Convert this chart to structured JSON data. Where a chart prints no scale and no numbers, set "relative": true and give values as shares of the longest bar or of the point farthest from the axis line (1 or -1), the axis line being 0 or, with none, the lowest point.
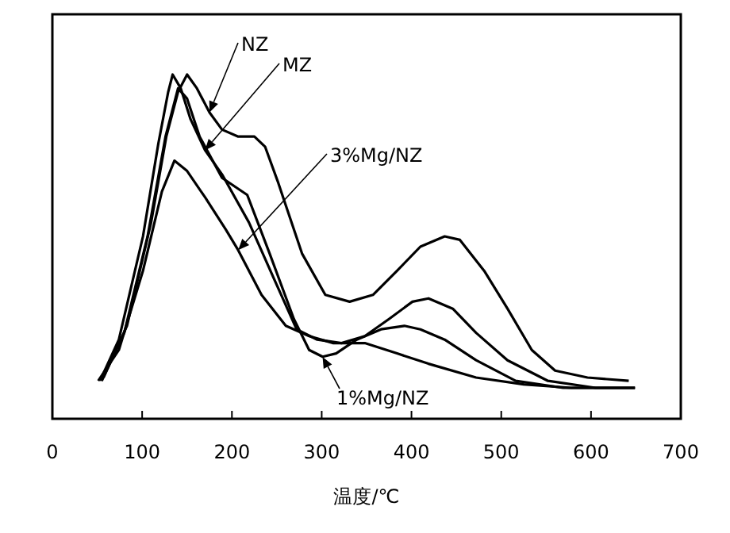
{
  "chart_data": {
    "type": "line",
    "relative": true,
    "xlabel": "温度/℃",
    "xlim": [
      0,
      700
    ],
    "xticks": [
      0,
      100,
      200,
      300,
      400,
      500,
      600,
      700
    ],
    "series": [
      {
        "name": "NZ",
        "color": "#000000",
        "x": [
          57,
          83,
          110,
          127,
          140,
          150,
          161,
          175,
          189,
          207,
          225,
          237,
          251,
          278,
          304,
          331,
          357,
          384,
          410,
          437,
          454,
          481,
          507,
          534,
          560,
          596,
          642
        ],
        "values": [
          0.12,
          0.27,
          0.57,
          0.82,
          0.95,
          1.0,
          0.96,
          0.89,
          0.84,
          0.82,
          0.82,
          0.79,
          0.69,
          0.48,
          0.36,
          0.34,
          0.36,
          0.43,
          0.5,
          0.53,
          0.52,
          0.43,
          0.32,
          0.2,
          0.14,
          0.12,
          0.11
        ]
      },
      {
        "name": "MZ",
        "color": "#000000",
        "x": [
          53,
          74,
          101,
          118,
          129,
          134,
          143,
          154,
          170,
          189,
          219,
          248,
          272,
          295,
          322,
          348,
          375,
          401,
          419,
          446,
          472,
          507,
          552,
          605,
          649
        ],
        "values": [
          0.11,
          0.23,
          0.53,
          0.8,
          0.95,
          1.0,
          0.96,
          0.87,
          0.78,
          0.71,
          0.57,
          0.4,
          0.26,
          0.23,
          0.22,
          0.24,
          0.29,
          0.34,
          0.35,
          0.32,
          0.25,
          0.17,
          0.11,
          0.09,
          0.09
        ]
      },
      {
        "name": "1%Mg/NZ",
        "color": "#000000",
        "x": [
          55,
          80,
          106,
          126,
          140,
          150,
          164,
          189,
          217,
          242,
          269,
          286,
          301,
          316,
          339,
          366,
          392,
          410,
          437,
          472,
          516,
          569,
          649
        ],
        "values": [
          0.11,
          0.25,
          0.53,
          0.82,
          0.96,
          0.93,
          0.82,
          0.7,
          0.65,
          0.48,
          0.29,
          0.2,
          0.18,
          0.19,
          0.23,
          0.26,
          0.27,
          0.26,
          0.23,
          0.17,
          0.11,
          0.09,
          0.09
        ]
      },
      {
        "name": "3%Mg/NZ",
        "color": "#000000",
        "x": [
          51,
          74,
          101,
          122,
          136,
          150,
          171,
          193,
          207,
          233,
          260,
          286,
          313,
          348,
          384,
          419,
          472,
          525,
          578,
          649
        ],
        "values": [
          0.11,
          0.2,
          0.43,
          0.66,
          0.75,
          0.72,
          0.64,
          0.55,
          0.49,
          0.36,
          0.27,
          0.24,
          0.22,
          0.22,
          0.19,
          0.16,
          0.12,
          0.1,
          0.09,
          0.09
        ]
      }
    ]
  }
}
